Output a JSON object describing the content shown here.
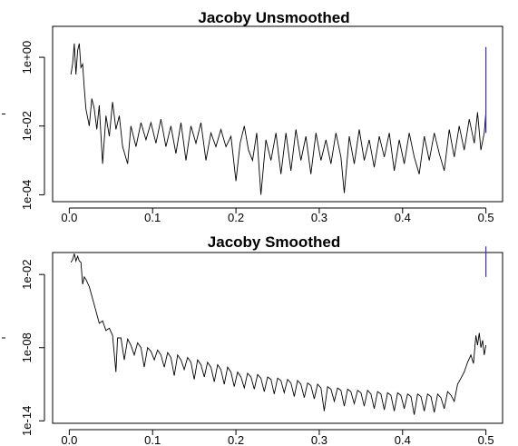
{
  "chart_data": [
    {
      "type": "line",
      "title": "Jacoby Unsmoothed",
      "xlabel": "",
      "ylabel": "",
      "x_range": [
        0,
        0.5
      ],
      "xlim": [
        -0.02,
        0.52
      ],
      "y_scale": "log",
      "ylim_log10": [
        -4.2,
        0.9
      ],
      "x_ticks": [
        0.0,
        0.1,
        0.2,
        0.3,
        0.4,
        0.5
      ],
      "x_tick_labels": [
        "0.0",
        "0.1",
        "0.2",
        "0.3",
        "0.4",
        "0.5"
      ],
      "y_tick_log10": [
        0,
        -2,
        -4
      ],
      "y_tick_labels": [
        "1e+00",
        "1e-02",
        "1e-04"
      ],
      "bandwidth_bar_log10": [
        -2.2,
        0.3
      ],
      "bandwidth_bar_color": "#3a2fb5",
      "line_color": "#000000",
      "points": [
        [
          0.002,
          -0.5
        ],
        [
          0.004,
          -0.2
        ],
        [
          0.006,
          0.4
        ],
        [
          0.008,
          -0.5
        ],
        [
          0.01,
          0.2
        ],
        [
          0.012,
          0.4
        ],
        [
          0.014,
          -0.3
        ],
        [
          0.016,
          -0.2
        ],
        [
          0.018,
          -0.9
        ],
        [
          0.02,
          -1.5
        ],
        [
          0.024,
          -2.0
        ],
        [
          0.027,
          -1.2
        ],
        [
          0.03,
          -1.5
        ],
        [
          0.033,
          -2.1
        ],
        [
          0.036,
          -1.4
        ],
        [
          0.04,
          -3.1
        ],
        [
          0.044,
          -1.7
        ],
        [
          0.048,
          -2.3
        ],
        [
          0.052,
          -1.3
        ],
        [
          0.056,
          -2.1
        ],
        [
          0.06,
          -1.7
        ],
        [
          0.064,
          -2.6
        ],
        [
          0.07,
          -3.1
        ],
        [
          0.074,
          -2.0
        ],
        [
          0.08,
          -2.6
        ],
        [
          0.086,
          -1.9
        ],
        [
          0.092,
          -2.4
        ],
        [
          0.098,
          -1.9
        ],
        [
          0.104,
          -2.5
        ],
        [
          0.11,
          -1.8
        ],
        [
          0.116,
          -2.6
        ],
        [
          0.122,
          -2.0
        ],
        [
          0.128,
          -2.8
        ],
        [
          0.134,
          -1.9
        ],
        [
          0.14,
          -3.0
        ],
        [
          0.146,
          -2.0
        ],
        [
          0.152,
          -2.5
        ],
        [
          0.158,
          -1.9
        ],
        [
          0.164,
          -3.0
        ],
        [
          0.17,
          -2.2
        ],
        [
          0.176,
          -2.6
        ],
        [
          0.182,
          -2.1
        ],
        [
          0.188,
          -2.6
        ],
        [
          0.194,
          -2.3
        ],
        [
          0.2,
          -3.6
        ],
        [
          0.205,
          -2.5
        ],
        [
          0.21,
          -2.0
        ],
        [
          0.215,
          -2.7
        ],
        [
          0.22,
          -3.0
        ],
        [
          0.225,
          -2.2
        ],
        [
          0.23,
          -4.0
        ],
        [
          0.236,
          -2.4
        ],
        [
          0.242,
          -3.0
        ],
        [
          0.248,
          -2.2
        ],
        [
          0.254,
          -3.4
        ],
        [
          0.26,
          -2.2
        ],
        [
          0.266,
          -3.3
        ],
        [
          0.272,
          -2.1
        ],
        [
          0.278,
          -3.0
        ],
        [
          0.284,
          -2.3
        ],
        [
          0.29,
          -3.4
        ],
        [
          0.296,
          -2.2
        ],
        [
          0.302,
          -3.0
        ],
        [
          0.308,
          -2.4
        ],
        [
          0.314,
          -3.1
        ],
        [
          0.32,
          -2.2
        ],
        [
          0.326,
          -2.9
        ],
        [
          0.33,
          -3.95
        ],
        [
          0.336,
          -2.3
        ],
        [
          0.342,
          -3.1
        ],
        [
          0.348,
          -2.1
        ],
        [
          0.354,
          -3.0
        ],
        [
          0.36,
          -2.4
        ],
        [
          0.366,
          -3.2
        ],
        [
          0.372,
          -2.3
        ],
        [
          0.378,
          -2.9
        ],
        [
          0.384,
          -2.2
        ],
        [
          0.39,
          -3.3
        ],
        [
          0.396,
          -2.4
        ],
        [
          0.402,
          -3.1
        ],
        [
          0.408,
          -2.2
        ],
        [
          0.414,
          -2.9
        ],
        [
          0.42,
          -3.4
        ],
        [
          0.426,
          -2.3
        ],
        [
          0.432,
          -3.0
        ],
        [
          0.438,
          -2.2
        ],
        [
          0.444,
          -2.8
        ],
        [
          0.45,
          -3.3
        ],
        [
          0.456,
          -2.1
        ],
        [
          0.462,
          -2.9
        ],
        [
          0.468,
          -2.0
        ],
        [
          0.474,
          -2.7
        ],
        [
          0.48,
          -1.8
        ],
        [
          0.486,
          -2.5
        ],
        [
          0.49,
          -1.6
        ],
        [
          0.494,
          -2.7
        ],
        [
          0.498,
          -2.2
        ],
        [
          0.5,
          -1.6
        ]
      ]
    },
    {
      "type": "line",
      "title": "Jacoby Smoothed",
      "xlabel": "",
      "ylabel": "",
      "x_range": [
        0,
        0.5
      ],
      "xlim": [
        -0.02,
        0.52
      ],
      "y_scale": "log",
      "ylim_log10": [
        -14.2,
        -0.2
      ],
      "x_ticks": [
        0.0,
        0.1,
        0.2,
        0.3,
        0.4,
        0.5
      ],
      "x_tick_labels": [
        "0.0",
        "0.1",
        "0.2",
        "0.3",
        "0.4",
        "0.5"
      ],
      "y_tick_log10": [
        -2,
        -8,
        -14
      ],
      "y_tick_labels": [
        "1e-02",
        "1e-08",
        "1e-14"
      ],
      "bandwidth_bar_log10": [
        -2.2,
        0.3
      ],
      "bandwidth_bar_color": "#3a2fb5",
      "line_color": "#000000",
      "points": [
        [
          0.002,
          -1.0
        ],
        [
          0.004,
          -0.8
        ],
        [
          0.006,
          -0.3
        ],
        [
          0.008,
          -0.9
        ],
        [
          0.01,
          -0.5
        ],
        [
          0.012,
          -0.9
        ],
        [
          0.014,
          -1.0
        ],
        [
          0.016,
          -2.8
        ],
        [
          0.018,
          -2.2
        ],
        [
          0.02,
          -2.4
        ],
        [
          0.024,
          -3.0
        ],
        [
          0.028,
          -4.0
        ],
        [
          0.032,
          -5.0
        ],
        [
          0.036,
          -6.0
        ],
        [
          0.04,
          -5.8
        ],
        [
          0.044,
          -6.6
        ],
        [
          0.048,
          -6.4
        ],
        [
          0.052,
          -7.0
        ],
        [
          0.056,
          -10.0
        ],
        [
          0.058,
          -7.2
        ],
        [
          0.062,
          -7.2
        ],
        [
          0.066,
          -9.0
        ],
        [
          0.07,
          -7.3
        ],
        [
          0.074,
          -7.8
        ],
        [
          0.078,
          -8.6
        ],
        [
          0.082,
          -7.6
        ],
        [
          0.086,
          -8.0
        ],
        [
          0.09,
          -9.6
        ],
        [
          0.094,
          -8.0
        ],
        [
          0.098,
          -8.3
        ],
        [
          0.102,
          -9.0
        ],
        [
          0.106,
          -8.2
        ],
        [
          0.11,
          -8.6
        ],
        [
          0.114,
          -9.6
        ],
        [
          0.118,
          -8.4
        ],
        [
          0.122,
          -8.8
        ],
        [
          0.126,
          -10.3
        ],
        [
          0.13,
          -8.6
        ],
        [
          0.134,
          -9.0
        ],
        [
          0.138,
          -9.8
        ],
        [
          0.142,
          -8.8
        ],
        [
          0.146,
          -9.2
        ],
        [
          0.15,
          -10.6
        ],
        [
          0.154,
          -9.0
        ],
        [
          0.158,
          -9.4
        ],
        [
          0.162,
          -10.4
        ],
        [
          0.166,
          -9.2
        ],
        [
          0.17,
          -9.6
        ],
        [
          0.174,
          -10.8
        ],
        [
          0.178,
          -9.4
        ],
        [
          0.182,
          -9.8
        ],
        [
          0.186,
          -11.0
        ],
        [
          0.19,
          -9.6
        ],
        [
          0.194,
          -10.0
        ],
        [
          0.198,
          -11.2
        ],
        [
          0.202,
          -10.0
        ],
        [
          0.206,
          -10.4
        ],
        [
          0.21,
          -11.3
        ],
        [
          0.214,
          -10.1
        ],
        [
          0.218,
          -10.4
        ],
        [
          0.222,
          -11.4
        ],
        [
          0.226,
          -10.2
        ],
        [
          0.23,
          -10.5
        ],
        [
          0.234,
          -11.6
        ],
        [
          0.238,
          -10.4
        ],
        [
          0.242,
          -10.6
        ],
        [
          0.246,
          -11.8
        ],
        [
          0.25,
          -10.5
        ],
        [
          0.254,
          -10.7
        ],
        [
          0.258,
          -11.7
        ],
        [
          0.262,
          -10.6
        ],
        [
          0.266,
          -10.9
        ],
        [
          0.27,
          -12.0
        ],
        [
          0.274,
          -10.7
        ],
        [
          0.278,
          -11.0
        ],
        [
          0.282,
          -12.1
        ],
        [
          0.286,
          -10.9
        ],
        [
          0.29,
          -11.1
        ],
        [
          0.294,
          -12.2
        ],
        [
          0.298,
          -11.0
        ],
        [
          0.302,
          -11.3
        ],
        [
          0.306,
          -13.2
        ],
        [
          0.31,
          -11.2
        ],
        [
          0.314,
          -11.4
        ],
        [
          0.318,
          -12.4
        ],
        [
          0.322,
          -11.3
        ],
        [
          0.326,
          -11.5
        ],
        [
          0.33,
          -12.8
        ],
        [
          0.334,
          -11.4
        ],
        [
          0.338,
          -11.6
        ],
        [
          0.342,
          -12.6
        ],
        [
          0.346,
          -11.5
        ],
        [
          0.35,
          -11.7
        ],
        [
          0.354,
          -12.8
        ],
        [
          0.358,
          -11.5
        ],
        [
          0.362,
          -11.8
        ],
        [
          0.366,
          -13.0
        ],
        [
          0.37,
          -11.6
        ],
        [
          0.374,
          -11.8
        ],
        [
          0.378,
          -13.1
        ],
        [
          0.382,
          -11.7
        ],
        [
          0.386,
          -11.9
        ],
        [
          0.39,
          -13.2
        ],
        [
          0.394,
          -11.7
        ],
        [
          0.398,
          -11.9
        ],
        [
          0.402,
          -13.0
        ],
        [
          0.406,
          -11.8
        ],
        [
          0.41,
          -12.0
        ],
        [
          0.414,
          -13.5
        ],
        [
          0.418,
          -11.8
        ],
        [
          0.422,
          -12.0
        ],
        [
          0.426,
          -13.2
        ],
        [
          0.43,
          -11.8
        ],
        [
          0.434,
          -12.0
        ],
        [
          0.438,
          -13.3
        ],
        [
          0.442,
          -11.8
        ],
        [
          0.446,
          -12.1
        ],
        [
          0.45,
          -13.0
        ],
        [
          0.454,
          -11.6
        ],
        [
          0.458,
          -11.9
        ],
        [
          0.462,
          -12.4
        ],
        [
          0.466,
          -11.0
        ],
        [
          0.47,
          -10.5
        ],
        [
          0.474,
          -10.0
        ],
        [
          0.478,
          -9.2
        ],
        [
          0.482,
          -8.6
        ],
        [
          0.485,
          -9.3
        ],
        [
          0.488,
          -7.0
        ],
        [
          0.49,
          -7.8
        ],
        [
          0.492,
          -6.8
        ],
        [
          0.494,
          -8.0
        ],
        [
          0.496,
          -7.4
        ],
        [
          0.498,
          -8.6
        ],
        [
          0.5,
          -7.8
        ]
      ]
    }
  ]
}
